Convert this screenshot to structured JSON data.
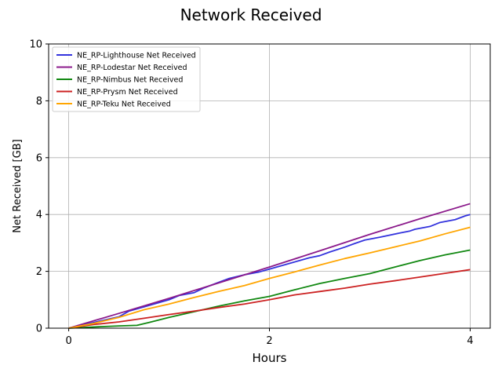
{
  "chart_data": {
    "type": "line",
    "title": "Network Received",
    "xlabel": "Hours",
    "ylabel": "Net Received [GB]",
    "xlim": [
      -0.2,
      4.2
    ],
    "ylim": [
      0,
      10
    ],
    "xticks": [
      0,
      2,
      4
    ],
    "yticks": [
      0,
      2,
      4,
      6,
      8,
      10
    ],
    "grid": true,
    "legend_position": "top-left",
    "series": [
      {
        "name": "NE_RP-Lighthouse Net Received",
        "color": "#3333dd",
        "x": [
          0,
          0.25,
          0.5,
          0.6,
          0.75,
          0.9,
          1.0,
          1.1,
          1.25,
          1.35,
          1.5,
          1.6,
          1.75,
          1.9,
          2.0,
          2.1,
          2.2,
          2.3,
          2.4,
          2.5,
          2.6,
          2.75,
          2.85,
          2.95,
          3.1,
          3.3,
          3.4,
          3.45,
          3.6,
          3.7,
          3.85,
          3.95,
          4.0
        ],
        "y": [
          0,
          0.2,
          0.4,
          0.6,
          0.75,
          0.9,
          1.0,
          1.15,
          1.25,
          1.42,
          1.62,
          1.75,
          1.88,
          1.98,
          2.08,
          2.18,
          2.28,
          2.38,
          2.48,
          2.55,
          2.68,
          2.85,
          2.98,
          3.1,
          3.2,
          3.35,
          3.42,
          3.48,
          3.58,
          3.72,
          3.82,
          3.95,
          4.0
        ]
      },
      {
        "name": "NE_RP-Lodestar Net Received",
        "color": "#8b1a8b",
        "x": [
          0,
          0.5,
          1.0,
          1.5,
          2.0,
          2.5,
          3.0,
          3.5,
          4.0
        ],
        "y": [
          0,
          0.52,
          1.05,
          1.6,
          2.15,
          2.72,
          3.3,
          3.85,
          4.38
        ]
      },
      {
        "name": "NE_RP-Nimbus Net Received",
        "color": "#118811",
        "x": [
          0,
          0.3,
          0.5,
          0.68,
          0.8,
          1.0,
          1.25,
          1.5,
          1.75,
          2.0,
          2.25,
          2.5,
          2.75,
          3.0,
          3.25,
          3.5,
          3.75,
          4.0
        ],
        "y": [
          0,
          0.05,
          0.08,
          0.1,
          0.2,
          0.38,
          0.58,
          0.78,
          0.96,
          1.12,
          1.35,
          1.57,
          1.75,
          1.92,
          2.15,
          2.38,
          2.58,
          2.75
        ]
      },
      {
        "name": "NE_RP-Prysm Net Received",
        "color": "#cc2222",
        "x": [
          0,
          0.25,
          0.5,
          0.75,
          1.0,
          1.25,
          1.5,
          1.75,
          2.0,
          2.25,
          2.5,
          2.75,
          3.0,
          3.25,
          3.5,
          3.75,
          4.0
        ],
        "y": [
          0,
          0.13,
          0.22,
          0.35,
          0.48,
          0.6,
          0.73,
          0.85,
          1.0,
          1.17,
          1.29,
          1.41,
          1.55,
          1.67,
          1.8,
          1.93,
          2.06
        ]
      },
      {
        "name": "NE_RP-Teku Net Received",
        "color": "#ffa500",
        "x": [
          0,
          0.25,
          0.5,
          0.75,
          1.0,
          1.25,
          1.5,
          1.75,
          2.0,
          2.25,
          2.5,
          2.75,
          3.0,
          3.25,
          3.5,
          3.75,
          4.0
        ],
        "y": [
          0,
          0.17,
          0.38,
          0.65,
          0.85,
          1.08,
          1.3,
          1.5,
          1.75,
          1.98,
          2.22,
          2.45,
          2.65,
          2.86,
          3.07,
          3.32,
          3.55
        ]
      }
    ]
  }
}
